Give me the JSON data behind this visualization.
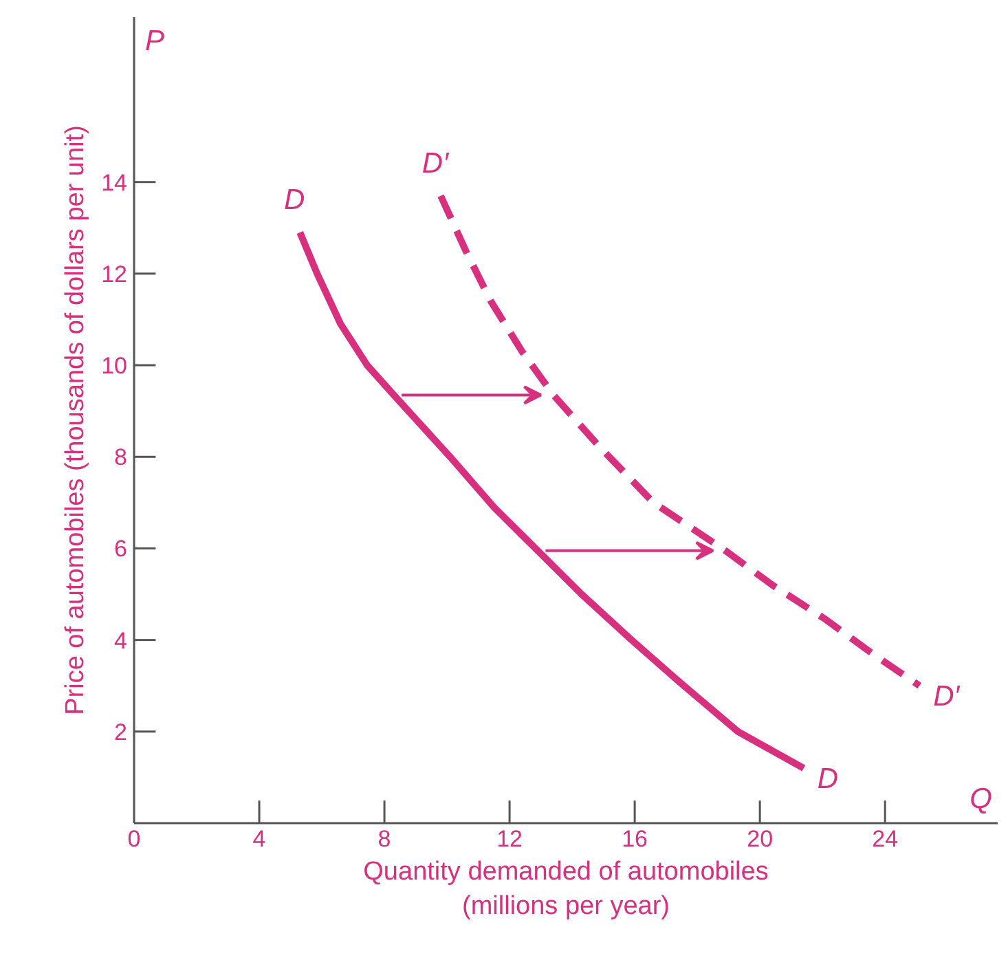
{
  "chart_data": {
    "type": "line",
    "xlabel": "Quantity demanded of automobiles\n(millions per year)",
    "ylabel": "Price of automobiles (thousands of dollars per unit)",
    "xlim": [
      0,
      27.6
    ],
    "ylim": [
      0,
      17.6
    ],
    "xticks": [
      0,
      4,
      8,
      12,
      16,
      20,
      24
    ],
    "yticks": [
      2,
      4,
      6,
      8,
      10,
      12,
      14
    ],
    "grid": false,
    "marker": "none",
    "series": [
      {
        "name": "D",
        "color": "#d6307f",
        "line_style": "solid",
        "x": [
          5.3,
          5.85,
          6.6,
          7.45,
          8.3,
          10.1,
          11.5,
          12.9,
          14.3,
          15.9,
          17.4,
          19.3,
          21.4
        ],
        "values": [
          12.9,
          12,
          10.9,
          10,
          9.35,
          8,
          6.9,
          5.95,
          5.0,
          4,
          3.1,
          2,
          1.2
        ]
      },
      {
        "name": "D′",
        "color": "#d6307f",
        "line_style": "dashed",
        "x": [
          9.8,
          10.6,
          11.4,
          12.4,
          13.4,
          14.9,
          16.6,
          18.9,
          20.4,
          22.1,
          23.6,
          25.1
        ],
        "values": [
          13.7,
          12.5,
          11.4,
          10.3,
          9.35,
          8.2,
          7.0,
          5.95,
          5.2,
          4.45,
          3.7,
          3.0
        ]
      }
    ],
    "annotations": [
      "P",
      "Q"
    ]
  }
}
